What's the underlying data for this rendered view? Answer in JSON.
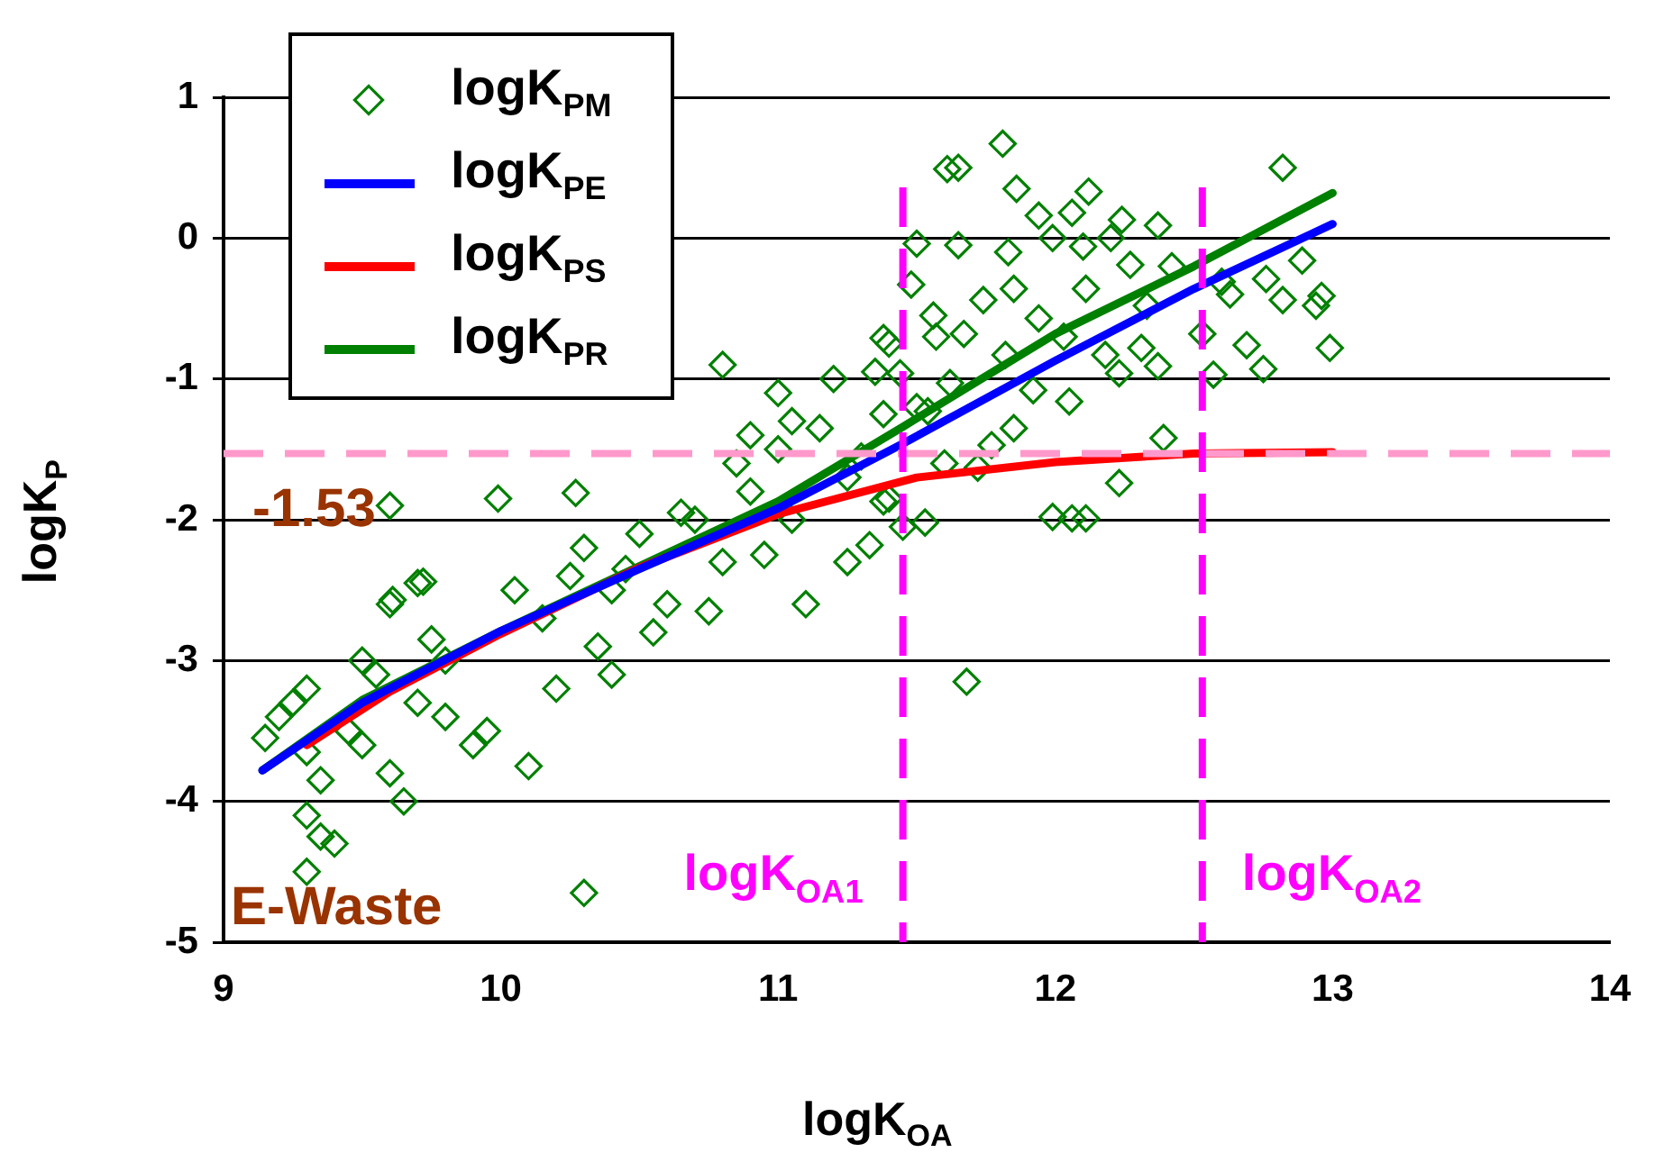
{
  "chart_data": {
    "type": "scatter",
    "xlabel": "logK$_{OA}$",
    "ylabel": "logK$_{P}$",
    "xlim": [
      9,
      14
    ],
    "ylim": [
      -5,
      1
    ],
    "xticks": [
      9,
      10,
      11,
      12,
      13,
      14
    ],
    "yticks": [
      -5,
      -4,
      -3,
      -2,
      -1,
      0,
      1
    ],
    "grid": "y",
    "legend": "top left",
    "series": [
      {
        "name": "logK$_{PM}$",
        "marker": "diamond",
        "color": "#008000",
        "x": [
          9.15,
          9.2,
          9.25,
          9.3,
          9.3,
          9.35,
          9.3,
          9.35,
          9.4,
          9.3,
          9.45,
          9.5,
          9.5,
          9.55,
          9.6,
          9.6,
          9.65,
          9.7,
          9.7,
          9.75,
          9.8,
          9.8,
          9.9,
          9.6,
          9.95,
          9.99,
          10.05,
          10.1,
          10.15,
          10.2,
          9.72,
          9.61,
          10.27,
          10.25,
          10.3,
          10.35,
          10.4,
          10.4,
          10.45,
          10.5,
          10.55,
          10.6,
          10.65,
          10.7,
          10.75,
          10.8,
          10.8,
          10.85,
          10.9,
          10.95,
          11.0,
          11.0,
          11.05,
          11.1,
          11.15,
          11.2,
          11.25,
          11.3,
          11.35,
          11.4,
          11.4,
          11.45,
          11.5,
          10.3,
          11.05,
          11.25,
          10.9,
          11.81,
          11.61,
          11.65,
          11.86,
          12.12,
          11.94,
          12.06,
          12.24,
          12.37,
          12.82,
          11.5,
          11.65,
          11.83,
          11.99,
          12.1,
          12.2,
          12.27,
          12.42,
          11.48,
          11.56,
          11.74,
          11.85,
          11.94,
          12.11,
          12.33,
          11.57,
          11.67,
          11.38,
          11.82,
          12.03,
          12.18,
          12.31,
          12.53,
          12.63,
          12.76,
          12.82,
          12.89,
          12.94,
          12.99,
          12.69,
          12.75,
          12.57,
          11.44,
          11.62,
          11.92,
          12.05,
          12.23,
          12.37,
          11.38,
          11.54,
          11.85,
          11.6,
          11.72,
          11.77,
          12.39,
          12.23,
          11.38,
          11.53,
          11.99,
          12.06,
          12.11,
          11.33,
          11.68,
          12.96,
          12.6
        ],
        "values": [
          -3.55,
          -3.4,
          -3.3,
          -3.2,
          -3.65,
          -3.85,
          -4.1,
          -4.25,
          -4.3,
          -4.5,
          -3.5,
          -3.6,
          -3.0,
          -3.1,
          -2.6,
          -3.8,
          -4.0,
          -2.45,
          -3.3,
          -2.85,
          -3.0,
          -3.4,
          -3.6,
          -1.9,
          -3.5,
          -1.85,
          -2.5,
          -3.75,
          -2.7,
          -3.2,
          -2.44,
          -2.57,
          -1.81,
          -2.4,
          -2.2,
          -2.9,
          -3.1,
          -2.5,
          -2.35,
          -2.1,
          -2.8,
          -2.6,
          -1.95,
          -2.0,
          -2.65,
          -0.9,
          -2.3,
          -1.6,
          -1.8,
          -2.25,
          -1.1,
          -1.5,
          -2.0,
          -2.6,
          -1.35,
          -1.0,
          -2.3,
          -1.55,
          -0.95,
          -0.75,
          -1.85,
          -2.05,
          -1.2,
          -4.65,
          -1.3,
          -1.7,
          -1.4,
          0.67,
          0.49,
          0.5,
          0.35,
          0.33,
          0.16,
          0.18,
          0.13,
          0.09,
          0.5,
          -0.04,
          -0.05,
          -0.1,
          0.0,
          -0.06,
          0.0,
          -0.19,
          -0.2,
          -0.33,
          -0.55,
          -0.44,
          -0.36,
          -0.57,
          -0.36,
          -0.48,
          -0.7,
          -0.68,
          -0.71,
          -0.83,
          -0.7,
          -0.83,
          -0.78,
          -0.68,
          -0.4,
          -0.29,
          -0.44,
          -0.16,
          -0.48,
          -0.78,
          -0.76,
          -0.93,
          -0.97,
          -0.96,
          -1.03,
          -1.08,
          -1.16,
          -0.96,
          -0.91,
          -1.25,
          -1.23,
          -1.35,
          -1.6,
          -1.63,
          -1.47,
          -1.42,
          -1.74,
          -1.87,
          -2.02,
          -1.98,
          -1.99,
          -1.99,
          -2.18,
          -3.15,
          -0.41,
          -0.31
        ]
      },
      {
        "name": "logK$_{PE}$",
        "type": "line",
        "marker": "none",
        "color": "#0000ff",
        "x": [
          9.14,
          9.5,
          10,
          10.5,
          11,
          11.45,
          12,
          12.5,
          13
        ],
        "values": [
          -3.78,
          -3.3,
          -2.79,
          -2.35,
          -1.92,
          -1.46,
          -0.87,
          -0.36,
          0.1
        ]
      },
      {
        "name": "logK$_{PS}$",
        "type": "line",
        "marker": "none",
        "color": "#ff0000",
        "x": [
          9.3,
          9.6,
          10,
          10.5,
          11,
          11.5,
          12,
          12.5,
          13
        ],
        "values": [
          -3.6,
          -3.22,
          -2.81,
          -2.34,
          -1.96,
          -1.7,
          -1.59,
          -1.53,
          -1.52
        ]
      },
      {
        "name": "logK$_{PR}$",
        "type": "line",
        "marker": "none",
        "color": "#008000",
        "x": [
          9.14,
          9.5,
          10,
          10.5,
          11,
          11.45,
          12,
          12.5,
          13
        ],
        "values": [
          -3.78,
          -3.28,
          -2.79,
          -2.33,
          -1.87,
          -1.34,
          -0.68,
          -0.2,
          0.32
        ]
      }
    ],
    "ref_lines": [
      {
        "axis": "y",
        "value": -1.53,
        "label": "-1.53",
        "color": "#ff99cc",
        "line_style": "dashed"
      },
      {
        "axis": "x",
        "value": 11.45,
        "label": "logK$_{OA1}$",
        "color": "#ff00ff",
        "line_style": "dashed"
      },
      {
        "axis": "x",
        "value": 12.53,
        "label": "logK$_{OA2}$",
        "color": "#ff00ff",
        "line_style": "dashed"
      }
    ],
    "annotations": [
      "E-Waste"
    ]
  }
}
